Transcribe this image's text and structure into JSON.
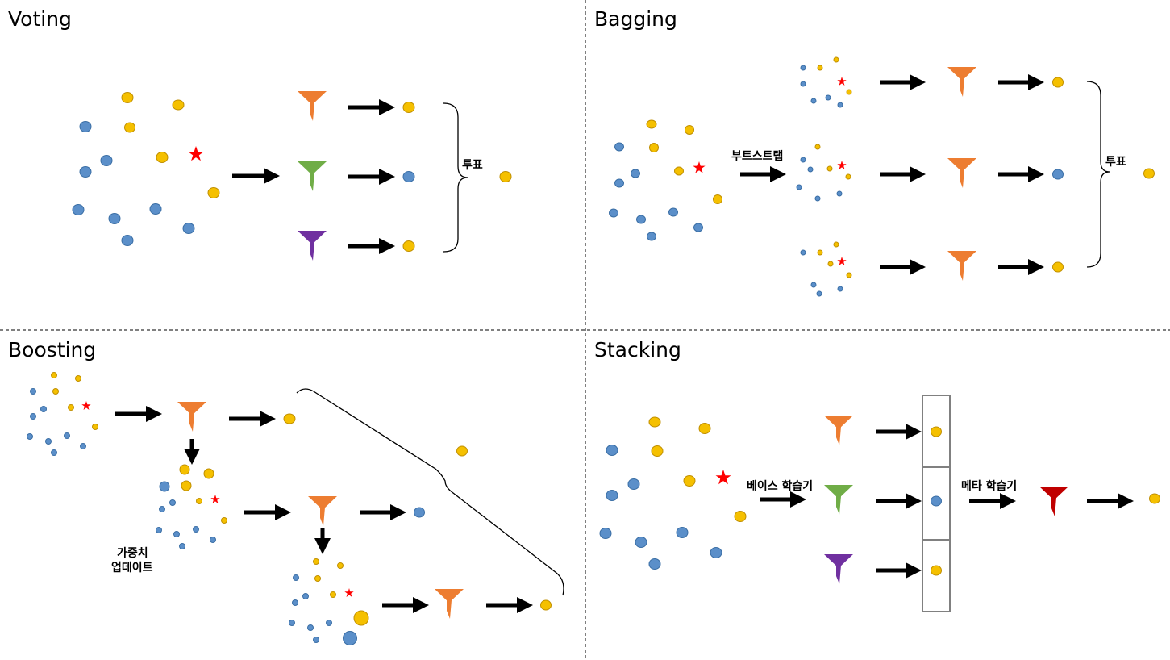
{
  "colors": {
    "blue": "#5b8fc9",
    "blue_stroke": "#3a6ea5",
    "yellow": "#f5c000",
    "yellow_stroke": "#c08f00",
    "red_star": "#ff0000",
    "orange_funnel": "#ed7d31",
    "green_funnel": "#70ad47",
    "purple_funnel": "#7030a0",
    "red_funnel": "#c00000"
  },
  "voting": {
    "title": "Voting",
    "vote_label": "투표",
    "models": [
      "orange-funnel",
      "green-funnel",
      "purple-funnel"
    ],
    "predictions": [
      "yellow",
      "blue",
      "yellow"
    ],
    "final": "yellow"
  },
  "bagging": {
    "title": "Bagging",
    "bootstrap_label": "부트스트랩",
    "vote_label": "투표",
    "predictions": [
      "yellow",
      "blue",
      "yellow"
    ],
    "final": "yellow"
  },
  "boosting": {
    "title": "Boosting",
    "weight_update_label_1": "가중치",
    "weight_update_label_2": "업데이트",
    "predictions": [
      "yellow",
      "blue",
      "yellow"
    ],
    "final": "yellow"
  },
  "stacking": {
    "title": "Stacking",
    "base_learner_label": "베이스 학습기",
    "meta_learner_label": "메타 학습기",
    "predictions": [
      "yellow",
      "blue",
      "yellow"
    ],
    "final": "yellow"
  }
}
